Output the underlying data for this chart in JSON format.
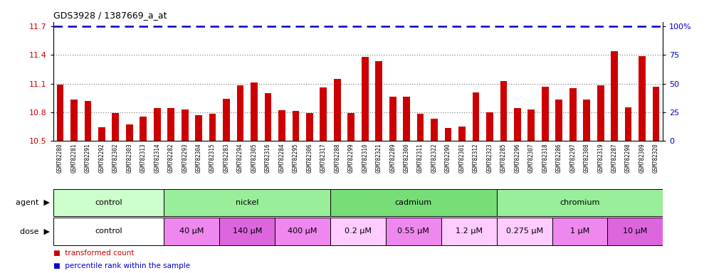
{
  "title": "GDS3928 / 1387669_a_at",
  "samples": [
    "GSM782280",
    "GSM782281",
    "GSM782291",
    "GSM782292",
    "GSM782302",
    "GSM782303",
    "GSM782313",
    "GSM782314",
    "GSM782282",
    "GSM782293",
    "GSM782304",
    "GSM782315",
    "GSM782283",
    "GSM782294",
    "GSM782305",
    "GSM782316",
    "GSM782284",
    "GSM782295",
    "GSM782306",
    "GSM782317",
    "GSM782288",
    "GSM782299",
    "GSM782310",
    "GSM782321",
    "GSM782289",
    "GSM782300",
    "GSM782311",
    "GSM782322",
    "GSM782290",
    "GSM782301",
    "GSM782312",
    "GSM782323",
    "GSM782285",
    "GSM782296",
    "GSM782307",
    "GSM782318",
    "GSM782286",
    "GSM782297",
    "GSM782308",
    "GSM782319",
    "GSM782287",
    "GSM782298",
    "GSM782309",
    "GSM782320"
  ],
  "values": [
    11.09,
    10.93,
    10.92,
    10.64,
    10.79,
    10.67,
    10.75,
    10.84,
    10.84,
    10.83,
    10.77,
    10.78,
    10.94,
    11.08,
    11.11,
    11.0,
    10.82,
    10.81,
    10.79,
    11.06,
    11.15,
    10.79,
    11.38,
    11.34,
    10.96,
    10.96,
    10.78,
    10.73,
    10.63,
    10.65,
    11.01,
    10.8,
    11.13,
    10.84,
    10.83,
    11.07,
    10.93,
    11.05,
    10.93,
    11.08,
    11.44,
    10.85,
    11.39,
    11.07
  ],
  "percentile_value": 11.7,
  "ylim_min": 10.5,
  "ylim_max": 11.75,
  "yticks_left": [
    10.5,
    10.8,
    11.1,
    11.4,
    11.7
  ],
  "yticks_right": [
    0,
    25,
    50,
    75,
    100
  ],
  "bar_color": "#cc0000",
  "percentile_color": "#0000cc",
  "dotted_line_color": "#888888",
  "dotted_line_values": [
    10.8,
    11.1,
    11.4
  ],
  "agent_groups": [
    {
      "label": "control",
      "start": 0,
      "end": 8,
      "color": "#ccffcc"
    },
    {
      "label": "nickel",
      "start": 8,
      "end": 20,
      "color": "#99ee99"
    },
    {
      "label": "cadmium",
      "start": 20,
      "end": 32,
      "color": "#77dd77"
    },
    {
      "label": "chromium",
      "start": 32,
      "end": 44,
      "color": "#99ee99"
    }
  ],
  "dose_groups": [
    {
      "label": "control",
      "start": 0,
      "end": 8,
      "color": "#ffffff"
    },
    {
      "label": "40 μM",
      "start": 8,
      "end": 12,
      "color": "#ee88ee"
    },
    {
      "label": "140 μM",
      "start": 12,
      "end": 16,
      "color": "#dd66dd"
    },
    {
      "label": "400 μM",
      "start": 16,
      "end": 20,
      "color": "#ee88ee"
    },
    {
      "label": "0.2 μM",
      "start": 20,
      "end": 24,
      "color": "#ffccff"
    },
    {
      "label": "0.55 μM",
      "start": 24,
      "end": 28,
      "color": "#ee88ee"
    },
    {
      "label": "1.2 μM",
      "start": 28,
      "end": 32,
      "color": "#ffccff"
    },
    {
      "label": "0.275 μM",
      "start": 32,
      "end": 36,
      "color": "#ffccff"
    },
    {
      "label": "1 μM",
      "start": 36,
      "end": 40,
      "color": "#ee88ee"
    },
    {
      "label": "10 μM",
      "start": 40,
      "end": 44,
      "color": "#dd66dd"
    }
  ],
  "xtick_bg_color": "#cccccc",
  "xtick_label_fontsize": 5.5,
  "bar_width": 0.5
}
